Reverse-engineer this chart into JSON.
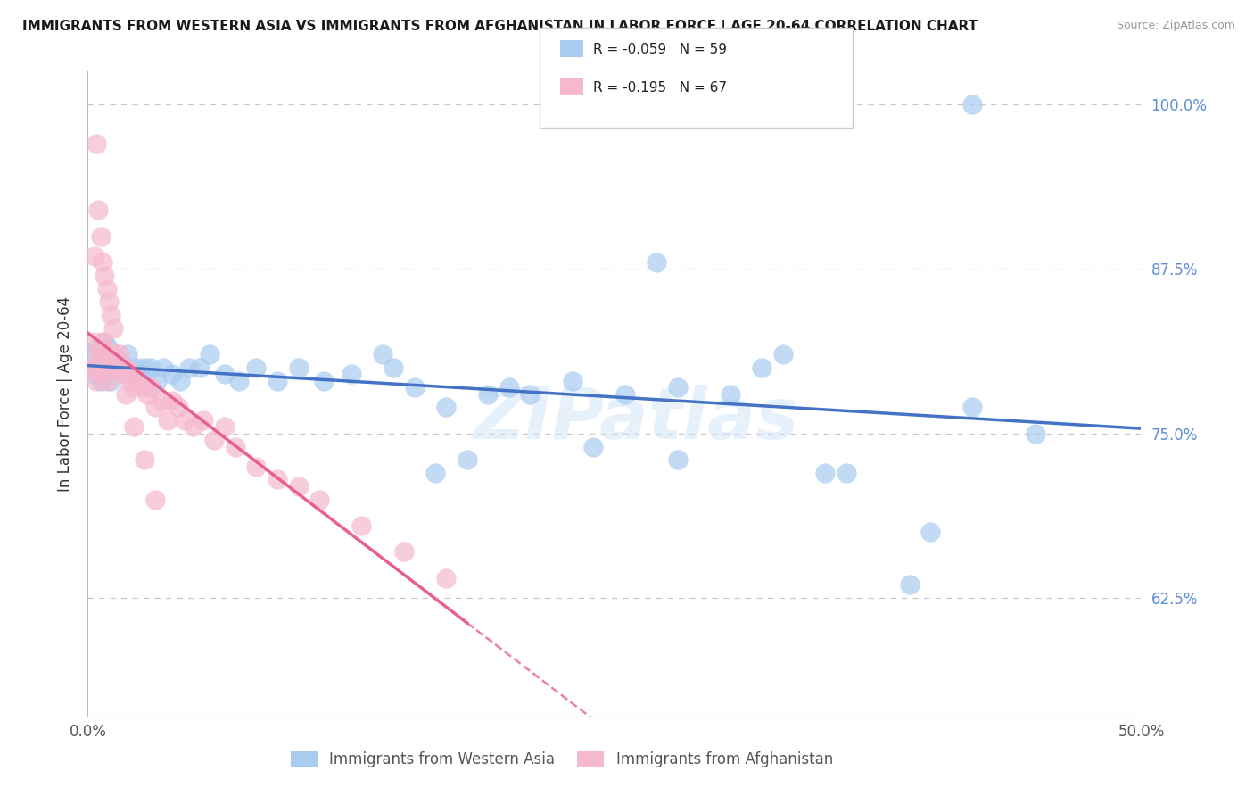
{
  "title": "IMMIGRANTS FROM WESTERN ASIA VS IMMIGRANTS FROM AFGHANISTAN IN LABOR FORCE | AGE 20-64 CORRELATION CHART",
  "source": "Source: ZipAtlas.com",
  "ylabel": "In Labor Force | Age 20-64",
  "legend_label1": "Immigrants from Western Asia",
  "legend_label2": "Immigrants from Afghanistan",
  "legend_r1": "-0.059",
  "legend_n1": "59",
  "legend_r2": "-0.195",
  "legend_n2": "67",
  "x_min": 0.0,
  "x_max": 0.5,
  "y_min": 0.535,
  "y_max": 1.025,
  "yticks": [
    0.625,
    0.75,
    0.875,
    1.0
  ],
  "ytick_labels": [
    "62.5%",
    "75.0%",
    "87.5%",
    "100.0%"
  ],
  "xticks": [
    0.0,
    0.1,
    0.2,
    0.3,
    0.4,
    0.5
  ],
  "xtick_labels": [
    "0.0%",
    "",
    "",
    "",
    "",
    "50.0%"
  ],
  "color_blue": "#A8CBF0",
  "color_pink": "#F5B8CE",
  "color_trendline_blue": "#4472C4",
  "color_trendline_pink": "#E86090",
  "color_right_axis": "#5B8DD9",
  "color_grid": "#C8C8C8",
  "watermark": "ZIPatlas",
  "blue_x": [
    0.002,
    0.003,
    0.004,
    0.005,
    0.006,
    0.007,
    0.008,
    0.009,
    0.01,
    0.011,
    0.012,
    0.013,
    0.015,
    0.017,
    0.019,
    0.021,
    0.023,
    0.025,
    0.027,
    0.03,
    0.033,
    0.036,
    0.04,
    0.044,
    0.048,
    0.053,
    0.058,
    0.065,
    0.072,
    0.08,
    0.09,
    0.1,
    0.112,
    0.125,
    0.14,
    0.155,
    0.17,
    0.19,
    0.21,
    0.23,
    0.255,
    0.28,
    0.305,
    0.33,
    0.36,
    0.39,
    0.42,
    0.45,
    0.28,
    0.32,
    0.18,
    0.2,
    0.24,
    0.145,
    0.165,
    0.35,
    0.4,
    0.42,
    0.27
  ],
  "blue_y": [
    0.81,
    0.795,
    0.815,
    0.8,
    0.79,
    0.805,
    0.82,
    0.8,
    0.815,
    0.79,
    0.81,
    0.8,
    0.805,
    0.8,
    0.81,
    0.795,
    0.8,
    0.795,
    0.8,
    0.8,
    0.79,
    0.8,
    0.795,
    0.79,
    0.8,
    0.8,
    0.81,
    0.795,
    0.79,
    0.8,
    0.79,
    0.8,
    0.79,
    0.795,
    0.81,
    0.785,
    0.77,
    0.78,
    0.78,
    0.79,
    0.78,
    0.785,
    0.78,
    0.81,
    0.72,
    0.635,
    0.77,
    0.75,
    0.73,
    0.8,
    0.73,
    0.785,
    0.74,
    0.8,
    0.72,
    0.72,
    0.675,
    1.0,
    0.88
  ],
  "pink_x": [
    0.002,
    0.003,
    0.003,
    0.004,
    0.004,
    0.005,
    0.005,
    0.006,
    0.006,
    0.007,
    0.007,
    0.008,
    0.008,
    0.009,
    0.009,
    0.01,
    0.01,
    0.011,
    0.012,
    0.013,
    0.013,
    0.014,
    0.015,
    0.016,
    0.017,
    0.018,
    0.019,
    0.02,
    0.021,
    0.022,
    0.024,
    0.026,
    0.028,
    0.03,
    0.032,
    0.035,
    0.038,
    0.04,
    0.043,
    0.046,
    0.05,
    0.055,
    0.06,
    0.065,
    0.07,
    0.08,
    0.09,
    0.1,
    0.11,
    0.13,
    0.15,
    0.17,
    0.004,
    0.005,
    0.006,
    0.003,
    0.007,
    0.008,
    0.009,
    0.01,
    0.011,
    0.012,
    0.015,
    0.018,
    0.022,
    0.027,
    0.032
  ],
  "pink_y": [
    0.8,
    0.82,
    0.8,
    0.8,
    0.79,
    0.81,
    0.8,
    0.81,
    0.795,
    0.82,
    0.8,
    0.8,
    0.815,
    0.8,
    0.79,
    0.8,
    0.81,
    0.8,
    0.8,
    0.81,
    0.8,
    0.805,
    0.8,
    0.795,
    0.8,
    0.8,
    0.795,
    0.79,
    0.795,
    0.785,
    0.79,
    0.785,
    0.78,
    0.785,
    0.77,
    0.775,
    0.76,
    0.775,
    0.77,
    0.76,
    0.755,
    0.76,
    0.745,
    0.755,
    0.74,
    0.725,
    0.715,
    0.71,
    0.7,
    0.68,
    0.66,
    0.64,
    0.97,
    0.92,
    0.9,
    0.885,
    0.88,
    0.87,
    0.86,
    0.85,
    0.84,
    0.83,
    0.81,
    0.78,
    0.755,
    0.73,
    0.7
  ]
}
